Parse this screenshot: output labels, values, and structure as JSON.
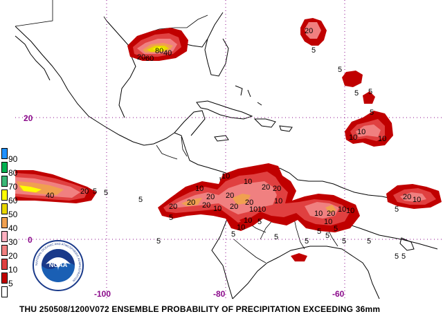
{
  "caption": "THU 250508/1200V072  ENSEMBLE PROBABILITY OF PRECIPITATION EXCEEDING 36mm",
  "axes": {
    "lon_labels": [
      {
        "value": -100,
        "text": "-100"
      },
      {
        "value": -80,
        "text": "-80"
      },
      {
        "value": -60,
        "text": "-60"
      }
    ],
    "lat_labels": [
      {
        "value": 20,
        "text": "20"
      },
      {
        "value": 0,
        "text": "0"
      }
    ],
    "grid_color": "#8b0a8b"
  },
  "legend": [
    {
      "label": "90",
      "color": "#1e90ff"
    },
    {
      "label": "80",
      "color": "#00b050"
    },
    {
      "label": "70",
      "color": "#3cb878"
    },
    {
      "label": "60",
      "color": "#ffff00"
    },
    {
      "label": "50",
      "color": "#e8d800"
    },
    {
      "label": "40",
      "color": "#f0a050"
    },
    {
      "label": "30",
      "color": "#ffb0c0"
    },
    {
      "label": "20",
      "color": "#f08080"
    },
    {
      "label": "10",
      "color": "#e04040"
    },
    {
      "label": "5",
      "color": "#c00000"
    },
    {
      "label": "",
      "color": "#ffffff"
    }
  ],
  "logo": {
    "text": "NOAA",
    "ring_text": "NATIONAL OCEANIC AND ATMOSPHERIC ADMINISTRATION"
  },
  "contour_labels": [
    "80",
    "60",
    "40",
    "20",
    "10",
    "5"
  ]
}
